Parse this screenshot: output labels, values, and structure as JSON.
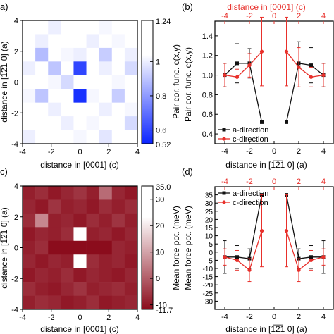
{
  "colors": {
    "black_series": "#111111",
    "red_series": "#e8302b",
    "blue_heat": "#0a24ff",
    "red_heat": "#8b0c1c"
  },
  "chart_data": [
    {
      "panel": "a)",
      "type": "heatmap",
      "xlabel": "distance in [0001] (c)",
      "ylabel": "distance in [1̅2̅1 0] (a)",
      "x_ticks": [
        "-4",
        "-2",
        "0",
        "2",
        "4"
      ],
      "y_ticks": [
        "4",
        "2",
        "0",
        "-2",
        "-4"
      ],
      "x_range": [
        -4,
        4
      ],
      "y_range": [
        -4,
        4
      ],
      "colorbar": {
        "label": "Pair cor. func. c(x,y)",
        "max_label": "1.24",
        "min_label": "0.52",
        "tick_labels": [
          "1",
          "0.8",
          "0.6"
        ],
        "min": 0.52,
        "max": 1.24
      },
      "grid_values": [
        [
          1.05,
          1.1,
          1.0,
          1.12,
          1.08,
          1.15,
          1.02,
          1.1,
          1.04
        ],
        [
          1.08,
          1.0,
          1.1,
          1.05,
          1.12,
          1.0,
          1.08,
          1.02,
          1.1
        ],
        [
          1.1,
          0.88,
          1.12,
          1.02,
          1.0,
          1.1,
          0.92,
          1.05,
          1.0
        ],
        [
          1.0,
          1.05,
          0.9,
          1.08,
          0.6,
          1.04,
          1.0,
          1.1,
          0.95
        ],
        [
          1.06,
          1.1,
          1.02,
          0.95,
          1.24,
          1.08,
          1.1,
          1.02,
          1.05
        ],
        [
          1.02,
          0.9,
          1.08,
          1.05,
          0.55,
          1.02,
          1.06,
          0.92,
          1.08
        ],
        [
          1.1,
          1.04,
          1.0,
          1.12,
          1.05,
          1.1,
          1.0,
          1.08,
          1.02
        ],
        [
          1.05,
          1.08,
          1.1,
          1.0,
          1.08,
          1.02,
          1.12,
          1.05,
          0.95
        ],
        [
          1.0,
          1.12,
          1.05,
          1.08,
          1.02,
          1.1,
          0.98,
          1.06,
          1.1
        ]
      ]
    },
    {
      "panel": "(b)",
      "type": "line",
      "xlabel": "distance in [1̅2̅1 0] (a)",
      "top_xlabel": "distance in [0001] (c)",
      "ylabel": "Pair cor. func. c(x,y)",
      "x_ticks": [
        "-4",
        "-2",
        "0",
        "2",
        "4"
      ],
      "top_x_ticks": [
        "-4",
        "-2",
        "0",
        "2",
        "4"
      ],
      "y_ticks": [
        "0.4",
        "0.6",
        "0.8",
        "1.0",
        "1.2",
        "1.4"
      ],
      "xlim": [
        -4.8,
        4.8
      ],
      "ylim": [
        0.3,
        1.55
      ],
      "legend": {
        "position": "bottom-left",
        "entries": [
          "a-direction",
          "c-direction"
        ]
      },
      "series": [
        {
          "name": "a-direction",
          "color": "#111111",
          "marker": "square",
          "segments": [
            {
              "x": [
                -4,
                -3,
                -2,
                -1
              ],
              "y": [
                1.0,
                1.12,
                1.12,
                0.52
              ],
              "err": [
                0.12,
                0.2,
                0.15,
                0.0
              ]
            },
            {
              "x": [
                1,
                2,
                3,
                4
              ],
              "y": [
                0.52,
                1.12,
                1.1,
                1.0
              ],
              "err": [
                0.0,
                0.22,
                0.18,
                0.12
              ]
            }
          ]
        },
        {
          "name": "c-direction",
          "color": "#e8302b",
          "marker": "circle",
          "segments": [
            {
              "x": [
                -4,
                -3,
                -2,
                -1
              ],
              "y": [
                1.0,
                0.98,
                1.1,
                1.24
              ],
              "err": [
                0.12,
                0.08,
                0.12,
                0.35
              ]
            },
            {
              "x": [
                1,
                2,
                3,
                4
              ],
              "y": [
                1.24,
                1.08,
                0.98,
                1.0
              ],
              "err": [
                0.35,
                0.2,
                0.1,
                0.12
              ]
            }
          ]
        }
      ]
    },
    {
      "panel": "c)",
      "type": "heatmap",
      "xlabel": "distance in [0001] (c)",
      "ylabel": "distance in [1̅2̅1 0] (a)",
      "x_ticks": [
        "-4",
        "-2",
        "0",
        "2",
        "4"
      ],
      "y_ticks": [
        "4",
        "2",
        "0",
        "-2",
        "-4"
      ],
      "x_range": [
        -4,
        4
      ],
      "y_range": [
        -4,
        4
      ],
      "colorbar": {
        "label": "Mean force pot. (meV)",
        "max_label": "35.0",
        "min_label": "-11.7",
        "tick_labels": [
          "30",
          "20",
          "10",
          "0",
          "-10"
        ],
        "min": -11.7,
        "max": 35.0
      },
      "grid_values": [
        [
          -9,
          -7,
          -10,
          -8,
          -6,
          -9,
          2,
          -8,
          -10
        ],
        [
          -8,
          -10,
          -6,
          -9,
          -8,
          -10,
          -7,
          -9,
          -7
        ],
        [
          -7,
          6,
          -9,
          -8,
          -10,
          -7,
          -9,
          -6,
          -9
        ],
        [
          -10,
          -8,
          -9,
          -7,
          35,
          -9,
          -8,
          -10,
          -8
        ],
        [
          -9,
          -7,
          -11.7,
          -11.7,
          -11.7,
          -11.7,
          -11.7,
          -8,
          -9
        ],
        [
          -8,
          -10,
          -8,
          -9,
          35,
          -7,
          -9,
          -8,
          -10
        ],
        [
          -10,
          -8,
          -9,
          -7,
          -10,
          -8,
          -9,
          -10,
          -8
        ],
        [
          -7,
          -9,
          -10,
          -8,
          -6,
          -9,
          -8,
          -7,
          -9
        ],
        [
          -9,
          -7,
          -8,
          -10,
          -9,
          -7,
          -10,
          -9,
          -8
        ]
      ]
    },
    {
      "panel": "(d)",
      "type": "line",
      "xlabel": "distance in [1̅2̅1 0] (a)",
      "top_xlabel": "",
      "ylabel": "Mean force pot. (meV)",
      "x_ticks": [
        "-4",
        "-2",
        "0",
        "2",
        "4"
      ],
      "top_x_ticks": [
        "-4",
        "-2",
        "0",
        "2",
        "4"
      ],
      "y_ticks": [
        "-30",
        "-25",
        "-20",
        "-15",
        "-10",
        "-5",
        "0",
        "5",
        "10",
        "15",
        "20",
        "25",
        "30",
        "35"
      ],
      "xlim": [
        -4.8,
        4.8
      ],
      "ylim": [
        -35,
        40
      ],
      "legend": {
        "position": "top-left",
        "entries": [
          "a-direction",
          "c-direction"
        ]
      },
      "series": [
        {
          "name": "a-direction",
          "color": "#111111",
          "marker": "square",
          "segments": [
            {
              "x": [
                -4,
                -3,
                -2,
                -1
              ],
              "y": [
                -3,
                -3,
                -4,
                35
              ],
              "err": [
                10,
                7,
                6,
                0
              ]
            },
            {
              "x": [
                1,
                2,
                3,
                4
              ],
              "y": [
                35,
                -4,
                -3,
                -3
              ],
              "err": [
                0,
                6,
                7,
                10
              ]
            }
          ]
        },
        {
          "name": "c-direction",
          "color": "#e8302b",
          "marker": "circle",
          "segments": [
            {
              "x": [
                -4,
                -3,
                -2,
                -1
              ],
              "y": [
                -3,
                -5,
                -11,
                13
              ],
              "err": [
                5,
                6,
                7,
                22
              ]
            },
            {
              "x": [
                1,
                2,
                3,
                4
              ],
              "y": [
                13,
                -11,
                -5,
                -3
              ],
              "err": [
                22,
                7,
                6,
                5
              ]
            }
          ]
        }
      ]
    }
  ]
}
